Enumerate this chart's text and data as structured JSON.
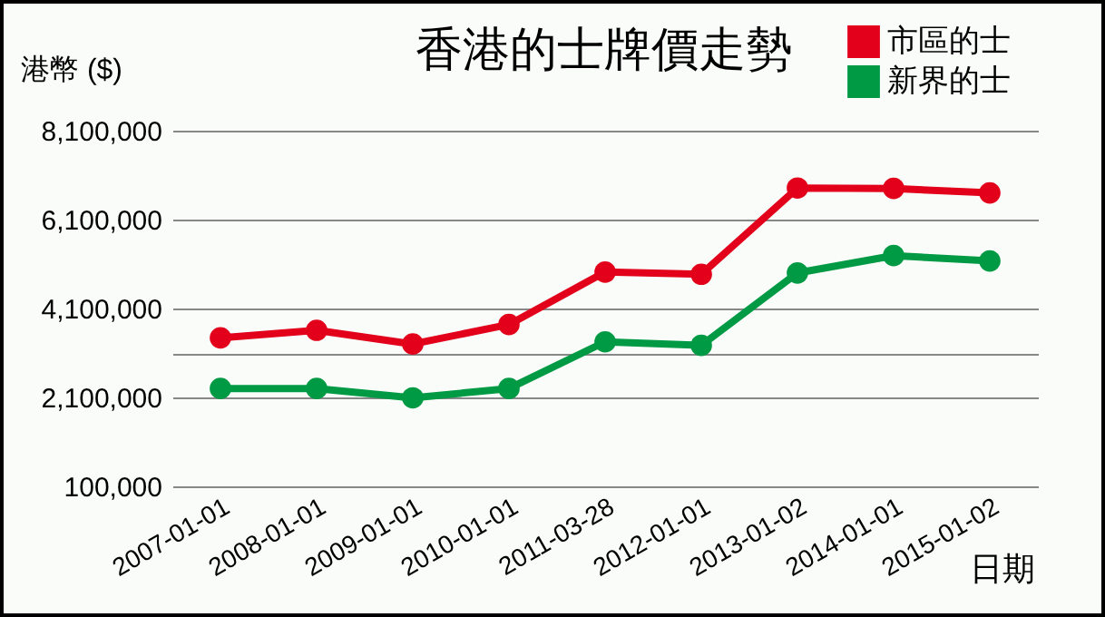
{
  "chart_data": {
    "type": "line",
    "title": "香港的士牌價走勢",
    "xlabel": "日期",
    "ylabel": "港幣 ($)",
    "categories": [
      "2007-01-01",
      "2008-01-01",
      "2009-01-01",
      "2010-01-01",
      "2011-03-28",
      "2012-01-01",
      "2013-01-02",
      "2014-01-01",
      "2015-01-02"
    ],
    "series": [
      {
        "name": "市區的士",
        "color": "#e2001a",
        "values": [
          3440000,
          3610000,
          3300000,
          3740000,
          4920000,
          4870000,
          6810000,
          6800000,
          6700000
        ]
      },
      {
        "name": "新界的士",
        "color": "#009a44",
        "values": [
          2300000,
          2300000,
          2090000,
          2300000,
          3350000,
          3270000,
          4900000,
          5290000,
          5170000
        ]
      }
    ],
    "ylim": [
      100000,
      8100000
    ],
    "yticks": [
      {
        "value": 100000,
        "label": "100,000"
      },
      {
        "value": 2100000,
        "label": "2,100,000"
      },
      {
        "value": 3100000,
        "label": null
      },
      {
        "value": 4100000,
        "label": "4,100,000"
      },
      {
        "value": 6100000,
        "label": "6,100,000"
      },
      {
        "value": 8100000,
        "label": "8,100,000"
      }
    ],
    "grid": "y",
    "legend": "top right",
    "marker": "circle",
    "line_style": "solid"
  }
}
